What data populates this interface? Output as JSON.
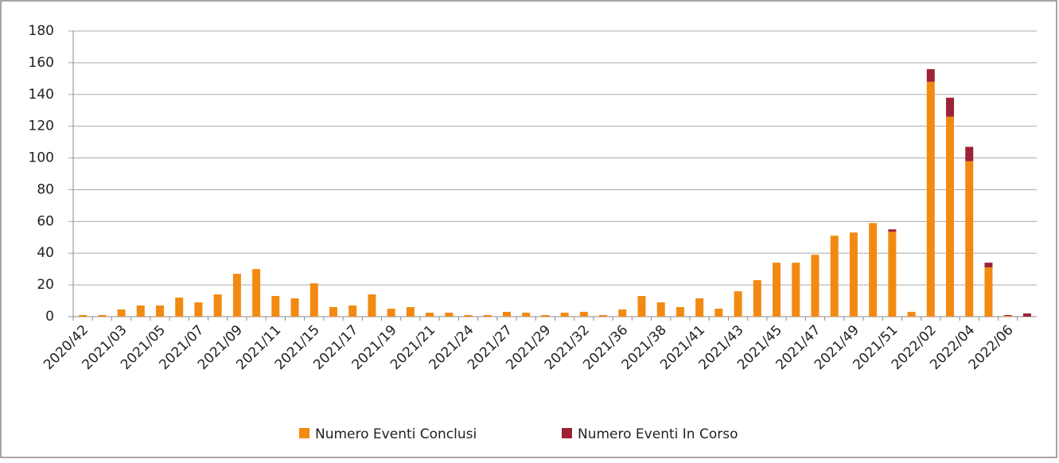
{
  "chart_data": {
    "type": "stacked_bar",
    "categories": [
      "2020/42",
      null,
      "2021/03",
      null,
      "2021/05",
      null,
      "2021/07",
      null,
      "2021/09",
      null,
      "2021/11",
      null,
      "2021/15",
      null,
      "2021/17",
      null,
      "2021/19",
      null,
      "2021/21",
      null,
      "2021/24",
      null,
      "2021/27",
      null,
      "2021/29",
      null,
      "2021/32",
      null,
      "2021/36",
      null,
      "2021/38",
      null,
      "2021/41",
      null,
      "2021/43",
      null,
      "2021/45",
      null,
      "2021/47",
      null,
      "2021/49",
      null,
      "2021/51",
      null,
      "2022/02",
      null,
      "2022/04",
      null,
      "2022/06",
      null
    ],
    "series": [
      {
        "name": "Numero Eventi Conclusi",
        "color": "#f28a12",
        "values": [
          1,
          1,
          4.5,
          7,
          7,
          12,
          9,
          14,
          27,
          30,
          13,
          11.5,
          21,
          6,
          7,
          14,
          5,
          6,
          2.5,
          2.5,
          1,
          1,
          3,
          2.5,
          1,
          2.5,
          3,
          1,
          4.5,
          13,
          9,
          6,
          11.5,
          5,
          16,
          23,
          34,
          34,
          39,
          51,
          53,
          59,
          53.5,
          3,
          148,
          126,
          98,
          31,
          0.5,
          0
        ]
      },
      {
        "name": "Numero Eventi In Corso",
        "color": "#9b2335",
        "values": [
          0,
          0,
          0,
          0,
          0,
          0,
          0,
          0,
          0,
          0,
          0,
          0,
          0,
          0,
          0,
          0,
          0,
          0,
          0,
          0,
          0,
          0,
          0,
          0,
          0,
          0,
          0,
          0,
          0,
          0,
          0,
          0,
          0,
          0,
          0,
          0,
          0,
          0,
          0,
          0,
          0,
          0,
          1.5,
          0,
          8,
          12,
          9,
          3,
          0.5,
          2
        ]
      }
    ],
    "ylim": [
      0,
      180
    ],
    "yticks": [
      0,
      20,
      40,
      60,
      80,
      100,
      120,
      140,
      160,
      180
    ],
    "grid": true,
    "legend": "bottom"
  }
}
